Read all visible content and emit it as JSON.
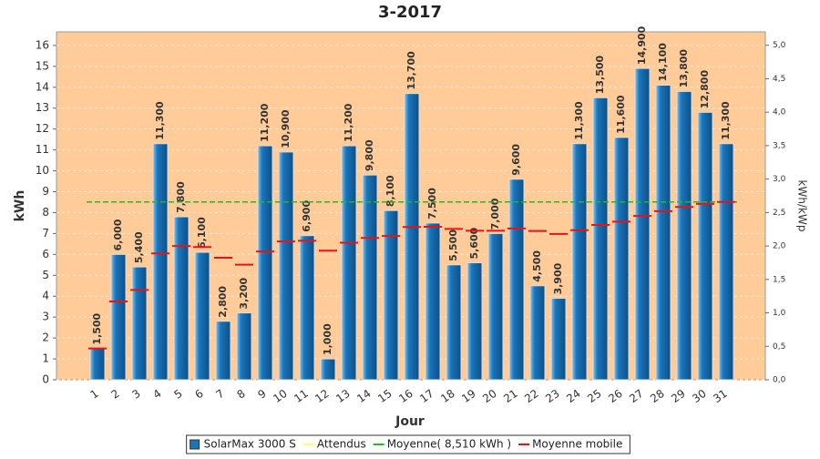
{
  "chart_data": {
    "type": "bar",
    "title": "3-2017",
    "x_label": "Jour",
    "y_label": "kWh",
    "y2_label": "kWh/kWp",
    "categories": [
      "1",
      "2",
      "3",
      "4",
      "5",
      "6",
      "7",
      "8",
      "9",
      "10",
      "11",
      "12",
      "13",
      "14",
      "15",
      "16",
      "17",
      "18",
      "19",
      "20",
      "21",
      "22",
      "23",
      "24",
      "25",
      "26",
      "27",
      "28",
      "29",
      "30",
      "31"
    ],
    "series": [
      {
        "name": "SolarMax 3000 S",
        "color": "#1a75bb",
        "type": "bar",
        "values": [
          1.5,
          6.0,
          5.4,
          11.3,
          7.8,
          6.1,
          2.8,
          3.2,
          11.2,
          10.9,
          6.9,
          1.0,
          11.2,
          9.8,
          8.1,
          13.7,
          7.5,
          5.5,
          5.6,
          7.0,
          9.6,
          4.5,
          3.9,
          11.3,
          13.5,
          11.6,
          14.9,
          14.1,
          13.8,
          12.8,
          11.3
        ],
        "value_labels": [
          "1,500",
          "6,000",
          "5,400",
          "11,300",
          "7,800",
          "6,100",
          "2,800",
          "3,200",
          "11,200",
          "10,900",
          "6,900",
          "1,000",
          "11,200",
          "9,800",
          "8,100",
          "13,700",
          "7,500",
          "5,500",
          "5,600",
          "7,000",
          "9,600",
          "4,500",
          "3,900",
          "11,300",
          "13,500",
          "11,600",
          "14,900",
          "14,100",
          "13,800",
          "12,800",
          "11,300"
        ]
      },
      {
        "name": "Attendus",
        "color": "#ffff66",
        "type": "legend"
      },
      {
        "name": "Moyenne( 8,510 kWh )",
        "color": "#22bb22",
        "type": "hline",
        "value": 8.51
      },
      {
        "name": "Moyenne mobile",
        "color": "#ee1111",
        "type": "step",
        "values": [
          1.5,
          3.75,
          4.3,
          6.05,
          6.4,
          6.35,
          5.84,
          5.51,
          6.14,
          6.62,
          6.65,
          6.18,
          6.56,
          6.79,
          6.88,
          7.31,
          7.32,
          7.22,
          7.13,
          7.13,
          7.24,
          7.12,
          6.98,
          7.16,
          7.41,
          7.57,
          7.84,
          8.07,
          8.27,
          8.42,
          8.51
        ]
      }
    ],
    "ylim": [
      0,
      16.65
    ],
    "yticks": [
      0,
      1,
      2,
      3,
      4,
      5,
      6,
      7,
      8,
      9,
      10,
      11,
      12,
      13,
      14,
      15,
      16
    ],
    "y2lim": [
      0,
      5.2
    ],
    "y2ticks": [
      {
        "value": 0,
        "label": "0,0"
      },
      {
        "value": 0.5,
        "label": "0,5"
      },
      {
        "value": 1,
        "label": "1,0"
      },
      {
        "value": 1.5,
        "label": "1,5"
      },
      {
        "value": 2,
        "label": "2,0"
      },
      {
        "value": 2.5,
        "label": "2,5"
      },
      {
        "value": 3,
        "label": "3,0"
      },
      {
        "value": 3.5,
        "label": "3,5"
      },
      {
        "value": 4,
        "label": "4,0"
      },
      {
        "value": 4.5,
        "label": "4,5"
      },
      {
        "value": 5,
        "label": "5,0"
      }
    ],
    "grid": true,
    "legend": "bottom"
  }
}
